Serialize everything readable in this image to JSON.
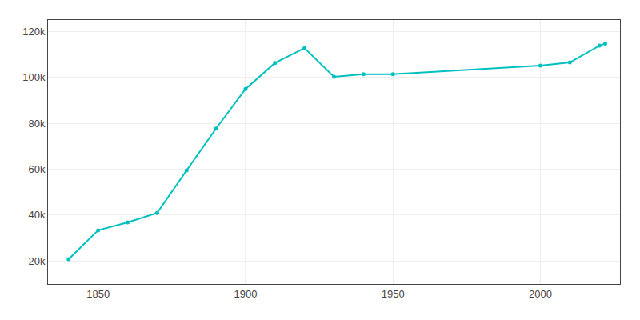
{
  "chart_data": {
    "type": "line",
    "x": [
      1840,
      1850,
      1860,
      1870,
      1880,
      1890,
      1900,
      1910,
      1920,
      1930,
      1940,
      1950,
      2000,
      2010,
      2020,
      2022
    ],
    "values": [
      20796,
      33383,
      36827,
      40928,
      59485,
      77696,
      94969,
      106294,
      112759,
      100234,
      101389,
      101429,
      105167,
      106519,
      113808,
      114699
    ],
    "color": "#00bfbf",
    "marker": "circle",
    "xlim": [
      1833,
      2027
    ],
    "xticks": [
      1850,
      1900,
      1950,
      2000
    ],
    "ylim": [
      10000,
      125000
    ],
    "yticks": [
      {
        "value": 20000,
        "label": "20k"
      },
      {
        "value": 40000,
        "label": "40k"
      },
      {
        "value": 60000,
        "label": "60k"
      },
      {
        "value": 80000,
        "label": "80k"
      },
      {
        "value": 100000,
        "label": "100k"
      },
      {
        "value": 120000,
        "label": "120k"
      }
    ],
    "grid": true
  }
}
